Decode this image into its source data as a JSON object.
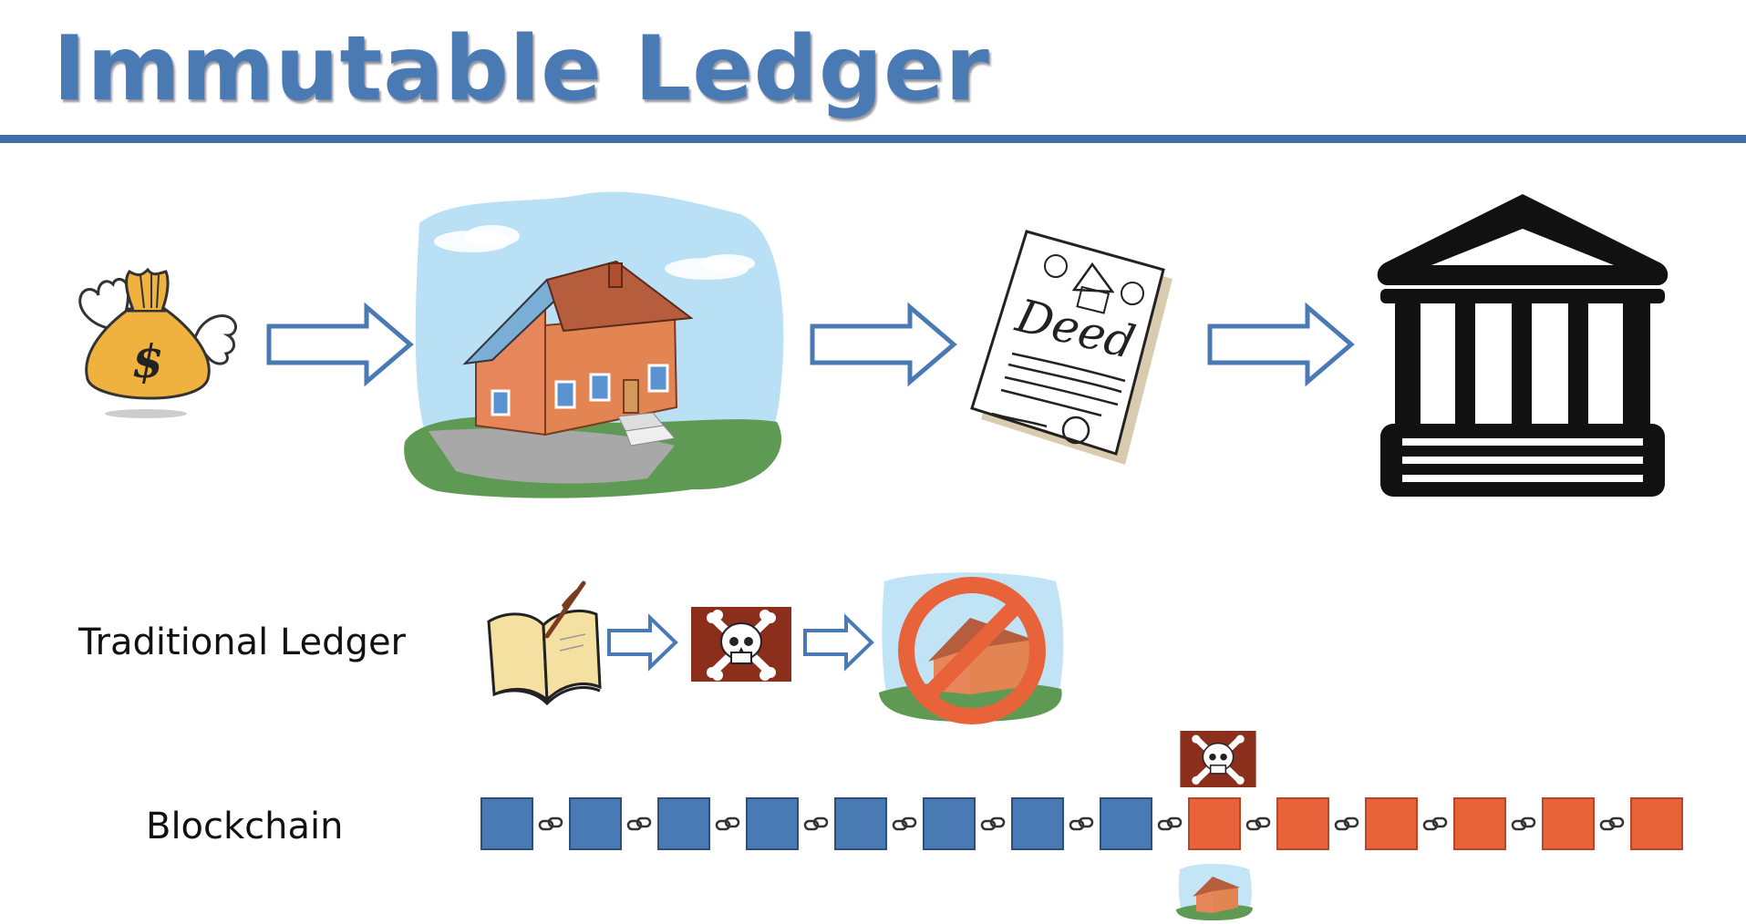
{
  "title": "Immutable Ledger",
  "top_flow": {
    "items": [
      "money-bag-icon",
      "house-icon",
      "deed-icon",
      "bank-icon"
    ],
    "deed_text": "Deed",
    "money_symbol": "$"
  },
  "rows": {
    "traditional_label": "Traditional Ledger",
    "blockchain_label": "Blockchain"
  },
  "blockchain": {
    "total_blocks": 14,
    "intact_blocks": 8,
    "colors": {
      "intact": "#4a7ab4",
      "tampered": "#e8623a",
      "border": "#2e4f7a",
      "accent": "#4a7ab4"
    }
  }
}
